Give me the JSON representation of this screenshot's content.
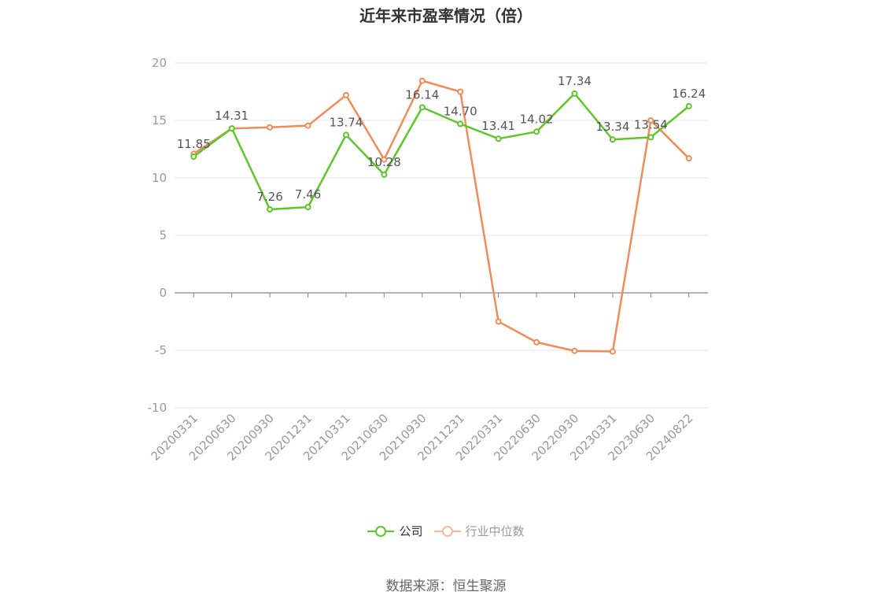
{
  "title": "近年来市盈率情况（倍）",
  "source": "数据来源：恒生聚源",
  "legend": [
    {
      "name": "公司",
      "color": "#5dc72a",
      "faded": false
    },
    {
      "name": "行业中位数",
      "color": "#f7b8a0",
      "faded": true
    }
  ],
  "chart_data": {
    "type": "line",
    "title": "近年来市盈率情况（倍）",
    "xlabel": "",
    "ylabel": "",
    "categories": [
      "20200331",
      "20200630",
      "20200930",
      "20201231",
      "20210331",
      "20210630",
      "20210930",
      "20211231",
      "20220331",
      "20220630",
      "20220930",
      "20230331",
      "20230630",
      "20240822"
    ],
    "ylim": [
      -10,
      20
    ],
    "yticks": [
      20,
      15,
      10,
      5,
      0,
      -5,
      -10
    ],
    "grid": true,
    "legend_position": "bottom-center",
    "series": [
      {
        "name": "公司",
        "color": "#5dc72a",
        "values": [
          11.85,
          14.31,
          7.26,
          7.46,
          13.74,
          10.28,
          16.14,
          14.7,
          13.41,
          14.02,
          17.34,
          13.34,
          13.54,
          16.24
        ],
        "labels": [
          "11.85",
          "14.31",
          "7.26",
          "7.46",
          "13.74",
          "10.28",
          "16.14",
          "14.70",
          "13.41",
          "14.02",
          "17.34",
          "13.34",
          "13.54",
          "16.24"
        ],
        "show_labels": true
      },
      {
        "name": "行业中位数",
        "color": "#f28b58",
        "values": [
          12.1,
          14.3,
          14.4,
          14.55,
          17.2,
          11.6,
          18.45,
          17.5,
          -2.5,
          -4.3,
          -5.05,
          -5.1,
          15.0,
          11.7
        ],
        "show_labels": false
      }
    ]
  }
}
